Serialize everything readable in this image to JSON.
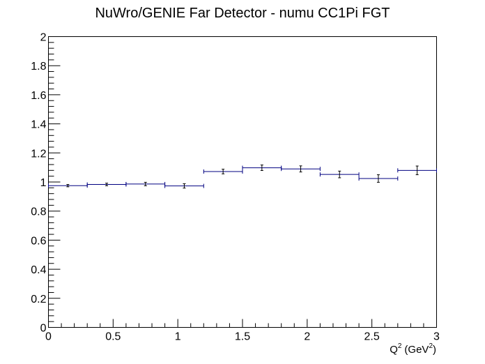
{
  "chart_data": {
    "type": "scatter",
    "title": "NuWro/GENIE Far Detector - numu CC1Pi FGT",
    "xlabel": "Q",
    "xlabel_sup": "2",
    "xlabel_unit": "(GeV",
    "xlabel_unit_sup": "2",
    "xlabel_close": ")",
    "ylabel": "",
    "xlim": [
      0,
      3
    ],
    "ylim": [
      0,
      2
    ],
    "grid": false,
    "line_color": "#000080",
    "x_ticks": [
      {
        "value": 0,
        "label": "0"
      },
      {
        "value": 0.5,
        "label": "0.5"
      },
      {
        "value": 1,
        "label": "1"
      },
      {
        "value": 1.5,
        "label": "1.5"
      },
      {
        "value": 2,
        "label": "2"
      },
      {
        "value": 2.5,
        "label": "2.5"
      },
      {
        "value": 3,
        "label": "3"
      }
    ],
    "y_ticks": [
      {
        "value": 0,
        "label": "0"
      },
      {
        "value": 0.2,
        "label": "0.2"
      },
      {
        "value": 0.4,
        "label": "0.4"
      },
      {
        "value": 0.6,
        "label": "0.6"
      },
      {
        "value": 0.8,
        "label": "0.8"
      },
      {
        "value": 1,
        "label": "1"
      },
      {
        "value": 1.2,
        "label": "1.2"
      },
      {
        "value": 1.4,
        "label": "1.4"
      },
      {
        "value": 1.6,
        "label": "1.6"
      },
      {
        "value": 1.8,
        "label": "1.8"
      },
      {
        "value": 2,
        "label": "2"
      }
    ],
    "points": [
      {
        "x_low": 0.0,
        "x_high": 0.3,
        "y": 0.975,
        "err": 0.008
      },
      {
        "x_low": 0.3,
        "x_high": 0.6,
        "y": 0.983,
        "err": 0.009
      },
      {
        "x_low": 0.6,
        "x_high": 0.9,
        "y": 0.986,
        "err": 0.012
      },
      {
        "x_low": 0.9,
        "x_high": 1.2,
        "y": 0.973,
        "err": 0.015
      },
      {
        "x_low": 1.2,
        "x_high": 1.5,
        "y": 1.072,
        "err": 0.016
      },
      {
        "x_low": 1.5,
        "x_high": 1.8,
        "y": 1.098,
        "err": 0.019
      },
      {
        "x_low": 1.8,
        "x_high": 2.1,
        "y": 1.09,
        "err": 0.021
      },
      {
        "x_low": 2.1,
        "x_high": 2.4,
        "y": 1.052,
        "err": 0.023
      },
      {
        "x_low": 2.4,
        "x_high": 2.7,
        "y": 1.024,
        "err": 0.026
      },
      {
        "x_low": 2.7,
        "x_high": 3.0,
        "y": 1.08,
        "err": 0.03
      }
    ]
  }
}
